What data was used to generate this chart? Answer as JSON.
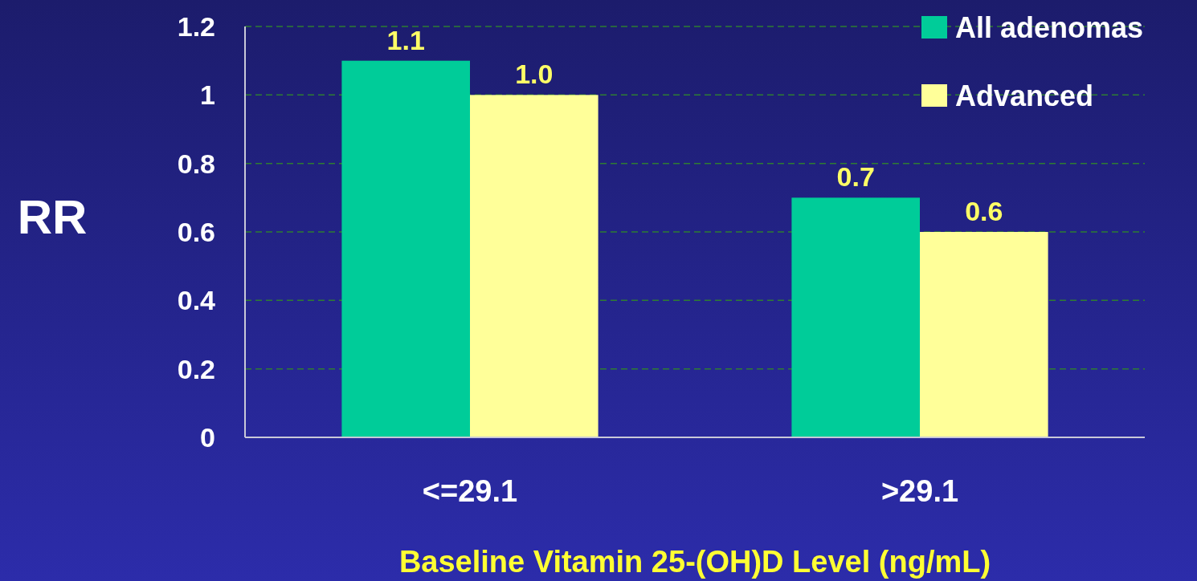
{
  "chart_data": {
    "type": "bar",
    "xlabel": "Baseline Vitamin 25-(OH)D Level (ng/mL)",
    "ylabel": "RR",
    "categories": [
      "<=29.1",
      ">29.1"
    ],
    "series": [
      {
        "name": "All adenomas",
        "color": "#00cc99",
        "values": [
          1.1,
          0.7
        ],
        "value_labels": [
          "1.1",
          "0.7"
        ]
      },
      {
        "name": "Advanced",
        "color": "#ffff99",
        "values": [
          1.0,
          0.6
        ],
        "value_labels": [
          "1.0",
          "0.6"
        ]
      }
    ],
    "ylim": [
      0,
      1.2
    ],
    "yticks": [
      0,
      0.2,
      0.4,
      0.6,
      0.8,
      1,
      1.2
    ],
    "grid": "y",
    "legend": "top right"
  }
}
